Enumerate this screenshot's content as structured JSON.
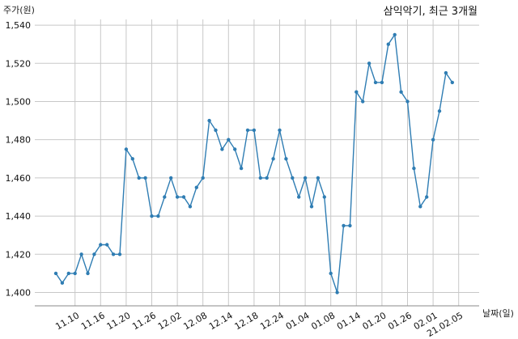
{
  "chart_data": {
    "type": "line",
    "title": "삼익악기, 최근 3개월",
    "ylabel": "주가(원)",
    "xlabel": "날짜(일)",
    "ylim": [
      1393,
      1543
    ],
    "yticks": [
      1400,
      1420,
      1440,
      1460,
      1480,
      1500,
      1520,
      1540
    ],
    "ytick_labels": [
      "1,400",
      "1,420",
      "1,440",
      "1,460",
      "1,480",
      "1,500",
      "1,520",
      "1,540"
    ],
    "xticks": [
      {
        "index": 3,
        "label": "11.10"
      },
      {
        "index": 7,
        "label": "11.16"
      },
      {
        "index": 11,
        "label": "11.20"
      },
      {
        "index": 15,
        "label": "11.26"
      },
      {
        "index": 19,
        "label": "12.02"
      },
      {
        "index": 23,
        "label": "12.08"
      },
      {
        "index": 27,
        "label": "12.14"
      },
      {
        "index": 31,
        "label": "12.18"
      },
      {
        "index": 35,
        "label": "12.24"
      },
      {
        "index": 39,
        "label": "01.04"
      },
      {
        "index": 43,
        "label": "01.08"
      },
      {
        "index": 47,
        "label": "01.14"
      },
      {
        "index": 51,
        "label": "01.20"
      },
      {
        "index": 55,
        "label": "01.26"
      },
      {
        "index": 59,
        "label": "02.01"
      },
      {
        "index": 63,
        "label": "21.02.05"
      }
    ],
    "grid": true,
    "color": "#2f7db3",
    "series": [
      {
        "values": [
          1410,
          1405,
          1410,
          1410,
          1420,
          1410,
          1420,
          1425,
          1425,
          1420,
          1420,
          1475,
          1470,
          1460,
          1460,
          1440,
          1440,
          1450,
          1460,
          1450,
          1450,
          1445,
          1455,
          1460,
          1490,
          1485,
          1475,
          1480,
          1475,
          1465,
          1485,
          1485,
          1460,
          1460,
          1470,
          1485,
          1470,
          1460,
          1450,
          1460,
          1445,
          1460,
          1450,
          1410,
          1400,
          1435,
          1435,
          1505,
          1500,
          1520,
          1510,
          1510,
          1530,
          1535,
          1505,
          1500,
          1465,
          1445,
          1450,
          1480,
          1495,
          1515,
          1510
        ]
      }
    ]
  }
}
